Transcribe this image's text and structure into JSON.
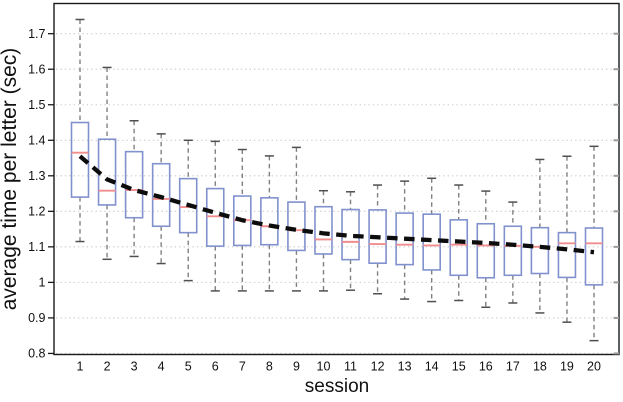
{
  "chart_data": {
    "type": "boxplot",
    "title": "",
    "xlabel": "session",
    "ylabel": "average time per letter (sec)",
    "x_tick_labels": [
      "1",
      "2",
      "3",
      "4",
      "5",
      "6",
      "7",
      "8",
      "9",
      "10",
      "11",
      "12",
      "13",
      "14",
      "15",
      "16",
      "17",
      "18",
      "19",
      "20"
    ],
    "y_ticks": [
      0.8,
      0.9,
      1.0,
      1.1,
      1.2,
      1.3,
      1.4,
      1.5,
      1.6,
      1.7
    ],
    "y_tick_labels": [
      "0.8",
      "0.9",
      "1",
      "1.1",
      "1.2",
      "1.3",
      "1.4",
      "1.5",
      "1.6",
      "1.7"
    ],
    "ylim": [
      0.797,
      1.785
    ],
    "grid": "horizontal-dotted",
    "legend": "none",
    "boxes": [
      {
        "session": 1,
        "whisker_low": 1.115,
        "q1": 1.24,
        "median": 1.365,
        "q3": 1.45,
        "whisker_high": 1.74
      },
      {
        "session": 2,
        "whisker_low": 1.065,
        "q1": 1.218,
        "median": 1.258,
        "q3": 1.403,
        "whisker_high": 1.605
      },
      {
        "session": 3,
        "whisker_low": 1.073,
        "q1": 1.182,
        "median": 1.26,
        "q3": 1.368,
        "whisker_high": 1.455
      },
      {
        "session": 4,
        "whisker_low": 1.053,
        "q1": 1.158,
        "median": 1.235,
        "q3": 1.334,
        "whisker_high": 1.418
      },
      {
        "session": 5,
        "whisker_low": 1.005,
        "q1": 1.14,
        "median": 1.212,
        "q3": 1.292,
        "whisker_high": 1.4
      },
      {
        "session": 6,
        "whisker_low": 0.976,
        "q1": 1.102,
        "median": 1.186,
        "q3": 1.264,
        "whisker_high": 1.397
      },
      {
        "session": 7,
        "whisker_low": 0.976,
        "q1": 1.104,
        "median": 1.175,
        "q3": 1.243,
        "whisker_high": 1.374
      },
      {
        "session": 8,
        "whisker_low": 0.976,
        "q1": 1.106,
        "median": 1.158,
        "q3": 1.238,
        "whisker_high": 1.356
      },
      {
        "session": 9,
        "whisker_low": 0.976,
        "q1": 1.09,
        "median": 1.147,
        "q3": 1.226,
        "whisker_high": 1.38
      },
      {
        "session": 10,
        "whisker_low": 0.976,
        "q1": 1.08,
        "median": 1.121,
        "q3": 1.213,
        "whisker_high": 1.258
      },
      {
        "session": 11,
        "whisker_low": 0.978,
        "q1": 1.064,
        "median": 1.114,
        "q3": 1.205,
        "whisker_high": 1.255
      },
      {
        "session": 12,
        "whisker_low": 0.968,
        "q1": 1.054,
        "median": 1.108,
        "q3": 1.204,
        "whisker_high": 1.274
      },
      {
        "session": 13,
        "whisker_low": 0.953,
        "q1": 1.05,
        "median": 1.106,
        "q3": 1.195,
        "whisker_high": 1.285
      },
      {
        "session": 14,
        "whisker_low": 0.946,
        "q1": 1.035,
        "median": 1.104,
        "q3": 1.192,
        "whisker_high": 1.293
      },
      {
        "session": 15,
        "whisker_low": 0.949,
        "q1": 1.02,
        "median": 1.106,
        "q3": 1.176,
        "whisker_high": 1.274
      },
      {
        "session": 16,
        "whisker_low": 0.93,
        "q1": 1.013,
        "median": 1.104,
        "q3": 1.165,
        "whisker_high": 1.257
      },
      {
        "session": 17,
        "whisker_low": 0.942,
        "q1": 1.02,
        "median": 1.103,
        "q3": 1.158,
        "whisker_high": 1.226
      },
      {
        "session": 18,
        "whisker_low": 0.914,
        "q1": 1.025,
        "median": 1.1,
        "q3": 1.154,
        "whisker_high": 1.346
      },
      {
        "session": 19,
        "whisker_low": 0.888,
        "q1": 1.014,
        "median": 1.11,
        "q3": 1.14,
        "whisker_high": 1.355
      },
      {
        "session": 20,
        "whisker_low": 0.836,
        "q1": 0.993,
        "median": 1.11,
        "q3": 1.153,
        "whisker_high": 1.383
      }
    ],
    "trend_line": {
      "name": "fitted-learning-curve",
      "style": "thick-black-dashed",
      "x": [
        1,
        2,
        3,
        4,
        5,
        6,
        7,
        8,
        9,
        10,
        11,
        12,
        13,
        14,
        15,
        16,
        17,
        18,
        19,
        20
      ],
      "values": [
        1.355,
        1.29,
        1.26,
        1.24,
        1.218,
        1.196,
        1.175,
        1.16,
        1.148,
        1.138,
        1.131,
        1.127,
        1.123,
        1.119,
        1.115,
        1.111,
        1.106,
        1.1,
        1.093,
        1.085
      ]
    },
    "colors": {
      "box_edge": "#8191cd",
      "median": "#f18d8d",
      "whisker": "#808080",
      "whisker_cap": "#4f4f4f",
      "grid": "#c9c9c9",
      "trend": "#0d0d0d",
      "axis": "#1a1a1a",
      "text": "#111111",
      "background": "#ffffff"
    }
  }
}
